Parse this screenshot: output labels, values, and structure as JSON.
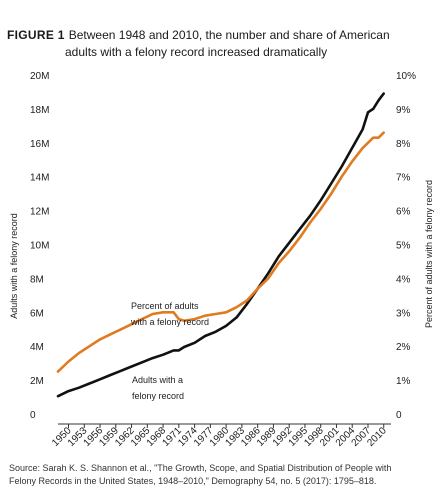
{
  "title": {
    "figure_label": "FIGURE 1",
    "line1": "Between 1948 and 2010, the number and share of American",
    "line2": "adults with a felony record increased dramatically"
  },
  "source": {
    "line1": "Source: Sarah K. S. Shannon et al., \"The Growth, Scope, and Spatial Distribution of People with",
    "line2": "Felony Records in the United States, 1948–2010,\" Demography 54, no. 5 (2017): 1795–818."
  },
  "chart_data": {
    "type": "line",
    "title": "",
    "ylabel_left": "Adults with a felony record",
    "ylabel_right": "Percent of adults with a felony record",
    "ylim_left": [
      0,
      20000000
    ],
    "ylim_right": [
      0,
      10
    ],
    "left_ticks": [
      "0",
      "2M",
      "4M",
      "6M",
      "8M",
      "10M",
      "12M",
      "14M",
      "16M",
      "18M",
      "20M"
    ],
    "right_ticks": [
      "0",
      "1%",
      "2%",
      "3%",
      "4%",
      "5%",
      "6%",
      "7%",
      "8%",
      "9%",
      "10%"
    ],
    "x_ticks": [
      "1950",
      "1953",
      "1956",
      "1959",
      "1962",
      "1965",
      "1968",
      "1971",
      "1974",
      "1977",
      "1980",
      "1983",
      "1986",
      "1989",
      "1992",
      "1995",
      "1998",
      "2001",
      "2004",
      "2007",
      "2010"
    ],
    "xlim": [
      1948,
      2011
    ],
    "series": [
      {
        "name": "Adults with a felony record",
        "annotation_line1": "Adults with a",
        "annotation_line2": "felony record",
        "color": "#111111",
        "axis": "left",
        "x": [
          1948,
          1950,
          1952,
          1954,
          1956,
          1958,
          1960,
          1962,
          1964,
          1966,
          1968,
          1970,
          1971,
          1972,
          1974,
          1976,
          1978,
          1980,
          1982,
          1984,
          1986,
          1988,
          1990,
          1992,
          1994,
          1996,
          1998,
          2000,
          2002,
          2004,
          2006,
          2007,
          2008,
          2009,
          2010
        ],
        "y": [
          1050000,
          1350000,
          1550000,
          1800000,
          2050000,
          2300000,
          2550000,
          2800000,
          3050000,
          3300000,
          3500000,
          3750000,
          3750000,
          3950000,
          4200000,
          4600000,
          4850000,
          5200000,
          5700000,
          6500000,
          7400000,
          8300000,
          9300000,
          10100000,
          10900000,
          11700000,
          12600000,
          13600000,
          14600000,
          15700000,
          16800000,
          17800000,
          18000000,
          18500000,
          18900000
        ]
      },
      {
        "name": "Percent of adults with a felony record",
        "annotation_line1": "Percent of adults",
        "annotation_line2": "with a felony record",
        "color": "#e07b1f",
        "axis": "right",
        "x": [
          1948,
          1950,
          1952,
          1954,
          1956,
          1958,
          1960,
          1962,
          1964,
          1966,
          1968,
          1970,
          1971,
          1972,
          1974,
          1976,
          1978,
          1980,
          1982,
          1984,
          1986,
          1988,
          1990,
          1992,
          1994,
          1996,
          1998,
          2000,
          2002,
          2004,
          2006,
          2007,
          2008,
          2009,
          2010
        ],
        "y": [
          1.25,
          1.55,
          1.8,
          2.0,
          2.2,
          2.35,
          2.5,
          2.65,
          2.8,
          2.95,
          3.0,
          3.0,
          2.8,
          2.75,
          2.8,
          2.9,
          2.95,
          3.0,
          3.15,
          3.35,
          3.7,
          4.0,
          4.45,
          4.8,
          5.2,
          5.65,
          6.05,
          6.5,
          7.0,
          7.45,
          7.85,
          8.0,
          8.15,
          8.15,
          8.3
        ]
      }
    ],
    "grid": false,
    "legend": "inline annotations"
  }
}
